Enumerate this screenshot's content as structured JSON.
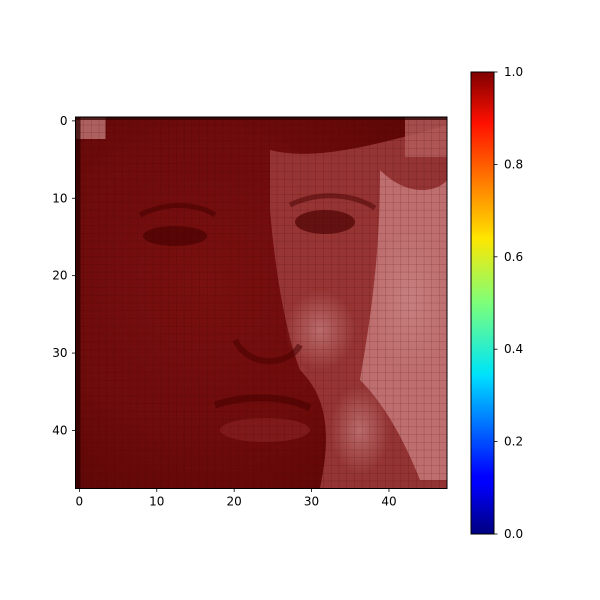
{
  "chart_data": {
    "type": "heatmap",
    "title": "",
    "xlabel": "",
    "ylabel": "",
    "image_size": [
      48,
      48
    ],
    "content": "grayscale face photo rendered with an overlaid red/transparent mask (jet-colormap values near 1.0)",
    "x_ticks": [
      0,
      10,
      20,
      30,
      40
    ],
    "y_ticks": [
      0,
      10,
      20,
      30,
      40
    ],
    "xlim": [
      -0.5,
      47.5
    ],
    "ylim": [
      47.5,
      -0.5
    ],
    "y_inverted": true,
    "grid": true,
    "colorbar": {
      "colormap": "jet",
      "range": [
        0.0,
        1.0
      ],
      "ticks": [
        "0.0",
        "0.2",
        "0.4",
        "0.6",
        "0.8",
        "1.0"
      ],
      "position": "right"
    },
    "colors": {
      "mask_dark": "#6b0a0a",
      "mask_mid": "#8c1c1c",
      "mask_light": "#c77a7a",
      "grid_line": "#4a0000"
    }
  }
}
